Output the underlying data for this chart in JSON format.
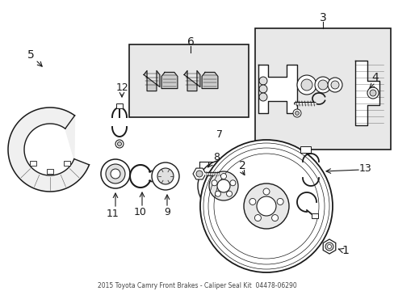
{
  "bg_color": "#ffffff",
  "line_color": "#1a1a1a",
  "box_fill": "#e8e8e8",
  "figsize": [
    4.89,
    3.6
  ],
  "dpi": 100,
  "parts": {
    "label_positions": {
      "1": [
        428,
        310,
        443,
        302
      ],
      "2": [
        299,
        205,
        295,
        213
      ],
      "3": [
        400,
        22,
        400,
        30
      ],
      "4": [
        465,
        98,
        458,
        108
      ],
      "5": [
        36,
        68,
        48,
        78
      ],
      "6": [
        236,
        52,
        236,
        60
      ],
      "7": [
        271,
        167,
        265,
        178
      ],
      "8": [
        268,
        195,
        263,
        202
      ],
      "9": [
        210,
        268,
        210,
        258
      ],
      "10": [
        175,
        262,
        178,
        252
      ],
      "11": [
        138,
        265,
        145,
        255
      ],
      "12": [
        151,
        108,
        151,
        120
      ],
      "13": [
        453,
        208,
        441,
        214
      ]
    }
  }
}
